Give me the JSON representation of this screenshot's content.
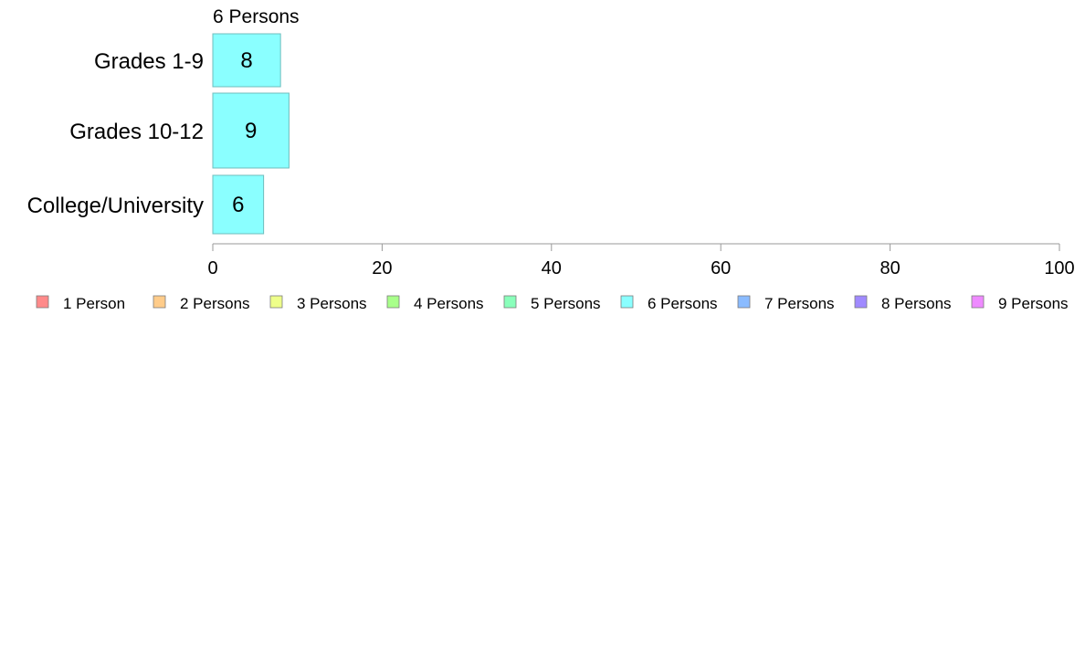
{
  "chart_data": {
    "type": "bar",
    "orientation": "horizontal",
    "title": "",
    "xlabel": "",
    "ylabel": "",
    "grid": false,
    "legend_placement": "bottom",
    "xlim": [
      0,
      100
    ],
    "x_ticks": [
      "0",
      "20",
      "40",
      "60",
      "80",
      "100"
    ],
    "categories": [
      "Grades 1-9",
      "Grades 10-12",
      "College/University"
    ],
    "series": [
      {
        "name": "6 Persons",
        "values": [
          8,
          9,
          6
        ],
        "color": "#8affff",
        "border_color": "#6fbdbd"
      }
    ],
    "series_label": "6 Persons",
    "legend": [
      {
        "label": "1 Person",
        "color": "#ff8a8a"
      },
      {
        "label": "2 Persons",
        "color": "#ffcc8a"
      },
      {
        "label": "3 Persons",
        "color": "#eeff8a"
      },
      {
        "label": "4 Persons",
        "color": "#a8ff8a"
      },
      {
        "label": "5 Persons",
        "color": "#8affbb"
      },
      {
        "label": "6 Persons",
        "color": "#8affff"
      },
      {
        "label": "7 Persons",
        "color": "#8abbff"
      },
      {
        "label": "8 Persons",
        "color": "#a08aff"
      },
      {
        "label": "9 Persons",
        "color": "#ee8aff"
      }
    ]
  }
}
